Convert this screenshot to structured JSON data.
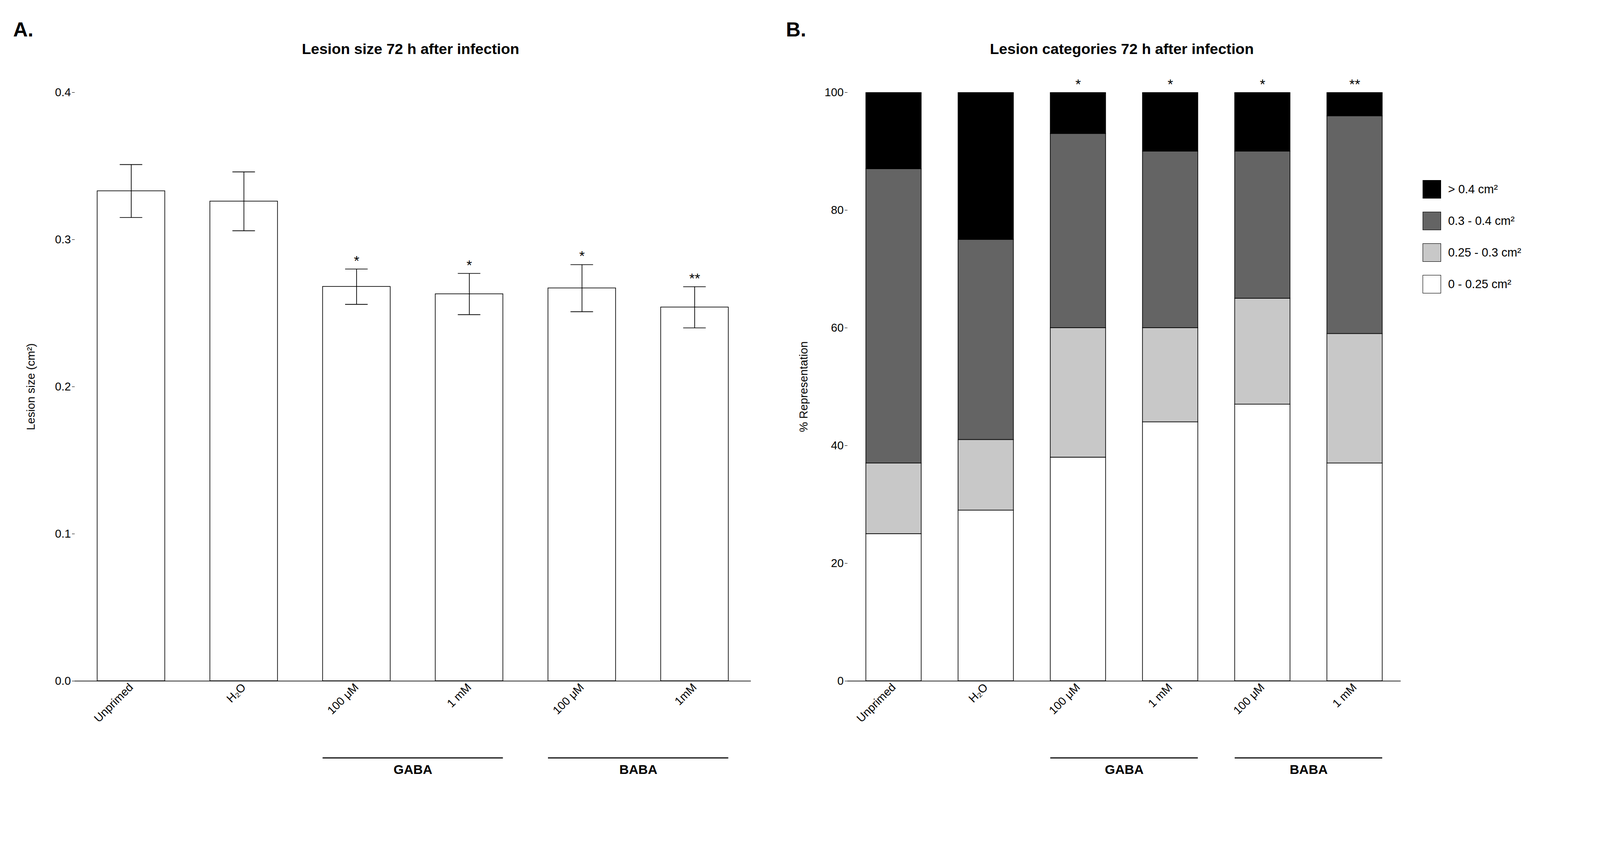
{
  "chart_data": [
    {
      "type": "bar",
      "panel_label": "A.",
      "title": "Lesion size 72 h after infection",
      "ylabel": "Lesion size (cm²)",
      "categories": [
        "Unprimed",
        "H₂O",
        "100 μM",
        "1 mM",
        "100 μM",
        "1mM"
      ],
      "values": [
        0.333,
        0.326,
        0.268,
        0.263,
        0.267,
        0.254
      ],
      "errors": [
        0.018,
        0.02,
        0.012,
        0.014,
        0.016,
        0.014
      ],
      "significance": [
        null,
        null,
        "*",
        "*",
        "*",
        "**"
      ],
      "groups": [
        null,
        null,
        "GABA",
        "GABA",
        "BABA",
        "BABA"
      ],
      "color": "#ffffff",
      "ylim": [
        0.0,
        0.4
      ],
      "yticks": [
        {
          "value": 0,
          "label": "0.0"
        },
        0.1,
        0.2,
        0.3,
        0.4
      ],
      "grid": false
    },
    {
      "type": "bar",
      "stacked": true,
      "panel_label": "B.",
      "title": "Lesion categories 72 h after infection",
      "ylabel": "% Representation",
      "categories": [
        "Unprimed",
        "H₂O",
        "100 μM",
        "1 mM",
        "100 μM",
        "1 mM"
      ],
      "series": [
        {
          "name": "0 - 0.25 cm²",
          "color": "#ffffff",
          "values": [
            25,
            29,
            38,
            44,
            47,
            37
          ]
        },
        {
          "name": "0.25 - 0.3 cm²",
          "color": "#c8c8c8",
          "values": [
            12,
            12,
            22,
            16,
            18,
            22
          ]
        },
        {
          "name": "0.3 - 0.4 cm²",
          "color": "#646464",
          "values": [
            50,
            34,
            33,
            30,
            25,
            37
          ]
        },
        {
          "name": "> 0.4 cm²",
          "color": "#000000",
          "values": [
            13,
            25,
            7,
            10,
            10,
            4
          ]
        }
      ],
      "significance": [
        null,
        null,
        "*",
        "*",
        "*",
        "**"
      ],
      "groups": [
        null,
        null,
        "GABA",
        "GABA",
        "BABA",
        "BABA"
      ],
      "legend": "right",
      "ylim": [
        0,
        100
      ],
      "yticks": [
        0,
        20,
        40,
        60,
        80,
        100
      ],
      "grid": false
    }
  ]
}
